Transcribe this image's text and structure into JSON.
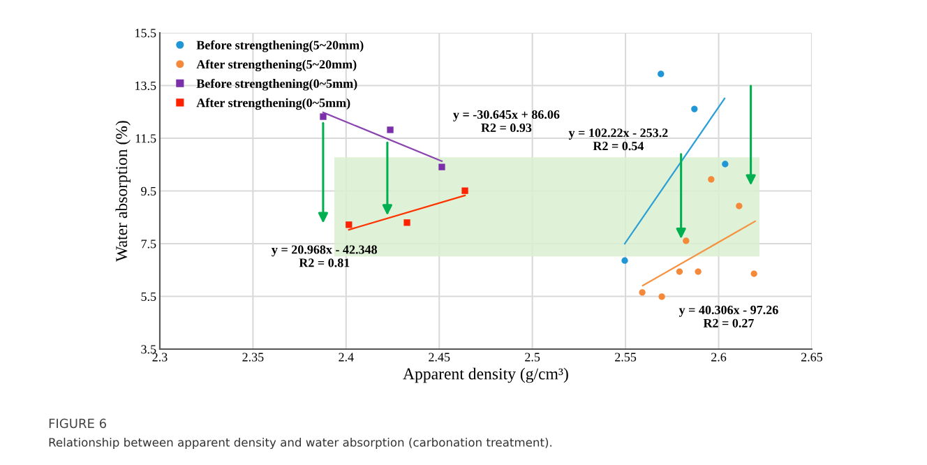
{
  "chart_data": {
    "type": "scatter",
    "xlabel": "Apparent density (g/cm³)",
    "ylabel": "Water absorption (%)",
    "xlim": [
      2.3,
      2.65
    ],
    "xticks": [
      2.3,
      2.35,
      2.4,
      2.45,
      2.5,
      2.55,
      2.6,
      2.65
    ],
    "ylim": [
      3.5,
      15.5
    ],
    "yticks": [
      3.5,
      5.5,
      7.5,
      9.5,
      11.5,
      13.5,
      15.5
    ],
    "grid": true,
    "legend": "top left",
    "bands": [
      {
        "axis": "y",
        "from": 7.02,
        "to": 10.78,
        "color": "#d9efcf"
      }
    ],
    "series": [
      {
        "name": "Before strengthening(5~20mm)",
        "marker": "circle",
        "color": "#2196d6",
        "x": [
          2.569,
          2.587,
          2.6035,
          2.5496
        ],
        "values": [
          13.94,
          12.61,
          10.52,
          6.86
        ]
      },
      {
        "name": "After strengthening(5~20mm)",
        "marker": "circle",
        "color": "#f5893a",
        "x": [
          2.596,
          2.611,
          2.5825,
          2.579,
          2.589,
          2.619,
          2.559,
          2.5695
        ],
        "values": [
          9.94,
          8.93,
          7.61,
          6.44,
          6.44,
          6.36,
          5.65,
          5.49
        ]
      },
      {
        "name": "Before strengthening(0~5mm)",
        "marker": "square",
        "color": "#7b2fa8",
        "x": [
          2.3877,
          2.4237,
          2.4514
        ],
        "values": [
          12.32,
          11.82,
          10.41
        ]
      },
      {
        "name": "After strengthening(0~5mm)",
        "marker": "square",
        "color": "#ff2200",
        "x": [
          2.4015,
          2.4327,
          2.4638
        ],
        "values": [
          8.22,
          8.3,
          9.51
        ]
      },
      {
        "type": "line",
        "color": "#8a44b0",
        "x": [
          2.3877,
          2.4514
        ],
        "values": [
          12.48,
          10.63
        ]
      },
      {
        "type": "line",
        "color": "#ff3300",
        "x": [
          2.4015,
          2.4638
        ],
        "values": [
          8.03,
          9.33
        ]
      },
      {
        "type": "line",
        "color": "#2a9fd6",
        "x": [
          2.5496,
          2.6032
        ],
        "values": [
          7.5,
          13.01
        ]
      },
      {
        "type": "line",
        "color": "#f5913f",
        "x": [
          2.5593,
          2.6196
        ],
        "values": [
          5.91,
          8.35
        ]
      }
    ],
    "annotations": [
      "y = -30.645x + 86.06\nR2 = 0.93",
      "y = 20.968x - 42.348\nR2 = 0.81",
      "y = 102.22x - 253.2\nR2 = 0.54",
      "y = 40.306x - 97.26\nR2 = 0.27",
      "FIGURE 6",
      "Relationship between apparent density and water absorption (carbonation treatment)."
    ]
  }
}
